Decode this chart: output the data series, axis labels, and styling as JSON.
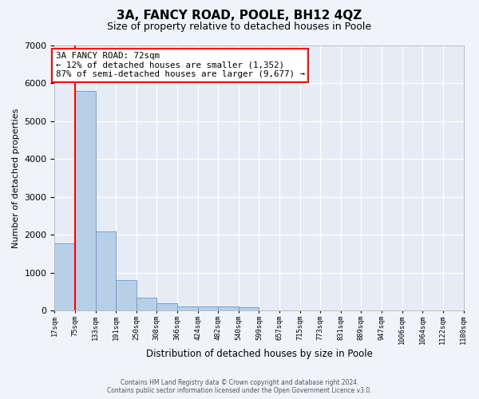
{
  "title1": "3A, FANCY ROAD, POOLE, BH12 4QZ",
  "title2": "Size of property relative to detached houses in Poole",
  "xlabel": "Distribution of detached houses by size in Poole",
  "ylabel": "Number of detached properties",
  "bin_labels": [
    "17sqm",
    "75sqm",
    "133sqm",
    "191sqm",
    "250sqm",
    "308sqm",
    "366sqm",
    "424sqm",
    "482sqm",
    "540sqm",
    "599sqm",
    "657sqm",
    "715sqm",
    "773sqm",
    "831sqm",
    "889sqm",
    "947sqm",
    "1006sqm",
    "1064sqm",
    "1122sqm",
    "1180sqm"
  ],
  "bar_values": [
    1780,
    5800,
    2080,
    800,
    340,
    190,
    115,
    100,
    100,
    80,
    0,
    0,
    0,
    0,
    0,
    0,
    0,
    0,
    0,
    0
  ],
  "bar_color": "#b8cfe8",
  "bar_edge_color": "#6699cc",
  "ylim": [
    0,
    7000
  ],
  "yticks": [
    0,
    1000,
    2000,
    3000,
    4000,
    5000,
    6000,
    7000
  ],
  "red_line_bin": 1,
  "annotation_title": "3A FANCY ROAD: 72sqm",
  "annotation_line1": "← 12% of detached houses are smaller (1,352)",
  "annotation_line2": "87% of semi-detached houses are larger (9,677) →",
  "footer1": "Contains HM Land Registry data © Crown copyright and database right 2024.",
  "footer2": "Contains public sector information licensed under the Open Government Licence v3.0.",
  "fig_bg_color": "#f0f4fa",
  "plot_bg_color": "#e6ecf5",
  "grid_color": "#ffffff"
}
